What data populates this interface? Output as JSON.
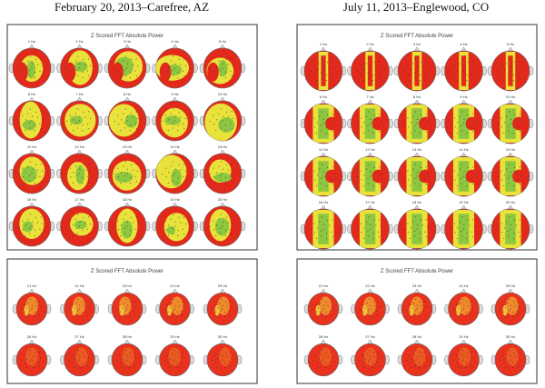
{
  "panels": [
    {
      "caption": "February 20, 2013–Carefree, AZ",
      "maps": [
        {
          "title": "Z Scored FFT Absolute Power",
          "labels": [
            "1 Hz",
            "2 Hz",
            "3 Hz",
            "4 Hz",
            "5 Hz",
            "6 Hz",
            "7 Hz",
            "8 Hz",
            "9 Hz",
            "10 Hz",
            "11 Hz",
            "12 Hz",
            "13 Hz",
            "14 Hz",
            "15 Hz",
            "16 Hz",
            "17 Hz",
            "18 Hz",
            "19 Hz",
            "20 Hz"
          ]
        },
        {
          "title": "Z Scored FFT Absolute Power",
          "labels": [
            "21 Hz",
            "22 Hz",
            "23 Hz",
            "24 Hz",
            "25 Hz",
            "26 Hz",
            "27 Hz",
            "28 Hz",
            "29 Hz",
            "30 Hz"
          ]
        }
      ]
    },
    {
      "caption": "July 11, 2013–Englewood, CO",
      "maps": [
        {
          "title": "Z Scored FFT Absolute Power",
          "labels": [
            "1 Hz",
            "2 Hz",
            "3 Hz",
            "4 Hz",
            "5 Hz",
            "6 Hz",
            "7 Hz",
            "8 Hz",
            "9 Hz",
            "10 Hz",
            "11 Hz",
            "12 Hz",
            "13 Hz",
            "14 Hz",
            "15 Hz",
            "16 Hz",
            "17 Hz",
            "18 Hz",
            "19 Hz",
            "20 Hz"
          ]
        },
        {
          "title": "Z Scored FFT Absolute Power",
          "labels": [
            "21 Hz",
            "22 Hz",
            "23 Hz",
            "24 Hz",
            "25 Hz",
            "26 Hz",
            "27 Hz",
            "28 Hz",
            "29 Hz",
            "30 Hz"
          ]
        }
      ]
    }
  ]
}
